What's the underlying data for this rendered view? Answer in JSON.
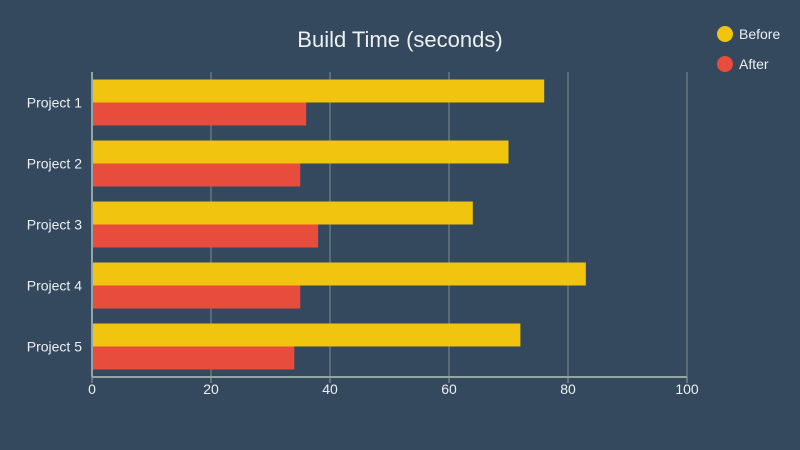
{
  "chart_data": {
    "type": "bar",
    "orientation": "horizontal",
    "title": "Build Time (seconds)",
    "xlabel": "",
    "ylabel": "",
    "xlim": [
      0,
      100
    ],
    "xticks": [
      0,
      20,
      40,
      60,
      80,
      100
    ],
    "grid": true,
    "legend_position": "top-right",
    "categories": [
      "Project 1",
      "Project 2",
      "Project 3",
      "Project 4",
      "Project 5"
    ],
    "series": [
      {
        "name": "Before",
        "color": "#f1c40f",
        "values": [
          76,
          70,
          64,
          83,
          72
        ]
      },
      {
        "name": "After",
        "color": "#e74c3c",
        "values": [
          36,
          35,
          38,
          35,
          34
        ]
      }
    ]
  },
  "colors": {
    "background": "#34495e",
    "axis": "#95a5a6",
    "grid": "#7f8c8d",
    "text": "#ecf0f1"
  }
}
